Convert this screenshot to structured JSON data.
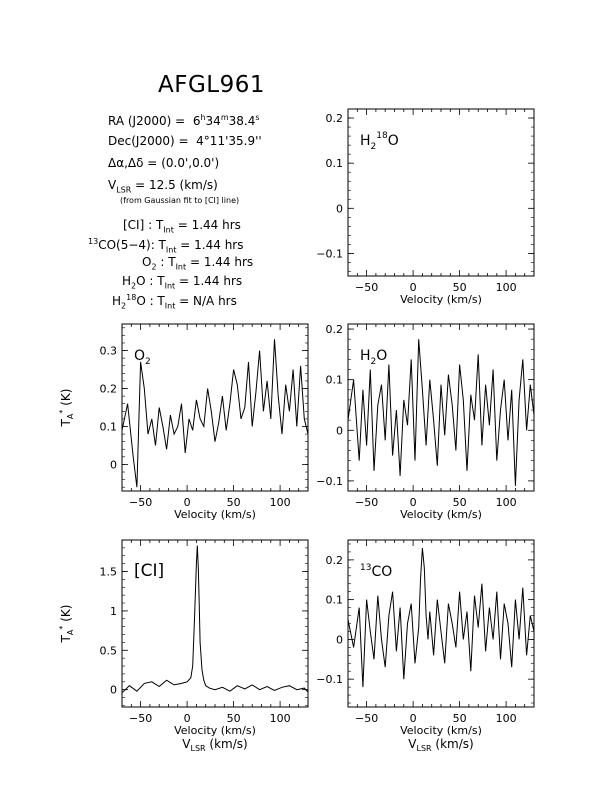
{
  "header": {
    "title": "AFGL961",
    "ra_label": "RA (J2000) =",
    "ra_value": "6h34m38.4s",
    "dec_label": "Dec(J2000) =",
    "dec_value": "4°11'35.9\"",
    "offset_label": "Δα,Δδ =",
    "offset_value": "(0.0',0.0')",
    "vlsr_label": "VLSR =",
    "vlsr_value": "12.5 (km/s)",
    "vlsr_note": "(from Gaussian fit to [CI] line)"
  },
  "integration": [
    {
      "line": "[CI]",
      "tint": "1.44 hrs"
    },
    {
      "line": "13CO(5-4)",
      "tint": "1.44 hrs"
    },
    {
      "line": "O2",
      "tint": "1.44 hrs"
    },
    {
      "line": "H2O",
      "tint": "1.44 hrs"
    },
    {
      "line": "H2 18O",
      "tint": "N/A hrs"
    }
  ],
  "tint_label": "TInt =",
  "chart_data": [
    {
      "type": "line",
      "label": "H2 18O",
      "xlabel": "Velocity (km/s)",
      "ylabel": "",
      "xlim": [
        -70,
        130
      ],
      "ylim": [
        -0.15,
        0.22
      ],
      "xticks": [
        -50,
        0,
        50,
        100
      ],
      "yticks": [
        -0.1,
        0,
        0.1,
        0.2
      ],
      "ytick_labels": [
        "−0.1",
        "0",
        "0.1",
        "0.2"
      ],
      "series": []
    },
    {
      "type": "line",
      "label": "O2",
      "xlabel": "Velocity (km/s)",
      "ylabel": "TA* (K)",
      "xlim": [
        -70,
        130
      ],
      "ylim": [
        -0.07,
        0.37
      ],
      "xticks": [
        -50,
        0,
        50,
        100
      ],
      "yticks": [
        0,
        0.1,
        0.2,
        0.3
      ],
      "ytick_labels": [
        "0",
        "0.1",
        "0.2",
        "0.3"
      ],
      "series": [
        {
          "x": [
            -70,
            -64,
            -58,
            -54,
            -50,
            -46,
            -42,
            -38,
            -34,
            -30,
            -26,
            -22,
            -18,
            -14,
            -10,
            -6,
            -2,
            2,
            6,
            10,
            14,
            18,
            22,
            26,
            30,
            34,
            38,
            42,
            46,
            50,
            54,
            58,
            62,
            66,
            70,
            74,
            78,
            82,
            86,
            90,
            94,
            98,
            102,
            106,
            110,
            114,
            118,
            122,
            126,
            130
          ],
          "y": [
            0.09,
            0.16,
            0.02,
            -0.06,
            0.27,
            0.2,
            0.08,
            0.12,
            0.05,
            0.15,
            0.1,
            0.04,
            0.13,
            0.08,
            0.1,
            0.16,
            0.03,
            0.12,
            0.09,
            0.17,
            0.12,
            0.1,
            0.2,
            0.14,
            0.06,
            0.11,
            0.18,
            0.09,
            0.16,
            0.25,
            0.21,
            0.12,
            0.15,
            0.27,
            0.1,
            0.19,
            0.3,
            0.14,
            0.22,
            0.12,
            0.33,
            0.18,
            0.08,
            0.21,
            0.14,
            0.25,
            0.1,
            0.26,
            0.12,
            0.08
          ]
        }
      ]
    },
    {
      "type": "line",
      "label": "H2O",
      "xlabel": "Velocity (km/s)",
      "ylabel": "",
      "xlim": [
        -70,
        130
      ],
      "ylim": [
        -0.12,
        0.21
      ],
      "xticks": [
        -50,
        0,
        50,
        100
      ],
      "yticks": [
        -0.1,
        0,
        0.1,
        0.2
      ],
      "ytick_labels": [
        "−0.1",
        "0",
        "0.1",
        "0.2"
      ],
      "series": [
        {
          "x": [
            -70,
            -64,
            -58,
            -54,
            -50,
            -46,
            -42,
            -38,
            -34,
            -30,
            -26,
            -22,
            -18,
            -14,
            -10,
            -6,
            -2,
            2,
            6,
            10,
            14,
            18,
            22,
            26,
            30,
            34,
            38,
            42,
            46,
            50,
            54,
            58,
            62,
            66,
            70,
            74,
            78,
            82,
            86,
            90,
            94,
            98,
            102,
            106,
            110,
            114,
            118,
            122,
            126,
            130
          ],
          "y": [
            0.02,
            0.1,
            -0.06,
            0.08,
            -0.03,
            0.12,
            -0.08,
            0.05,
            0.09,
            -0.02,
            0.13,
            -0.05,
            0.04,
            -0.09,
            0.06,
            0.01,
            0.14,
            -0.06,
            0.18,
            0.08,
            -0.03,
            0.1,
            0.02,
            -0.07,
            0.09,
            -0.01,
            0.11,
            0.05,
            -0.04,
            0.13,
            0.06,
            -0.08,
            0.07,
            0.02,
            0.15,
            -0.03,
            0.09,
            0.01,
            0.12,
            -0.06,
            0.04,
            0.1,
            -0.02,
            0.08,
            -0.11,
            0.06,
            0.14,
            0.0,
            0.09,
            0.03
          ]
        }
      ]
    },
    {
      "type": "line",
      "label": "[CI]",
      "xlabel": "Velocity (km/s)",
      "ylabel": "TA* (K)",
      "xlim": [
        -70,
        130
      ],
      "ylim": [
        -0.22,
        1.9
      ],
      "xticks": [
        -50,
        0,
        50,
        100
      ],
      "yticks": [
        0,
        0.5,
        1,
        1.5
      ],
      "ytick_labels": [
        "0",
        "0.5",
        "1",
        "1.5"
      ],
      "series": [
        {
          "x": [
            -70,
            -62,
            -54,
            -46,
            -38,
            -30,
            -22,
            -14,
            -6,
            0,
            4,
            6,
            8,
            10,
            11,
            12,
            13,
            14,
            16,
            18,
            20,
            24,
            30,
            38,
            46,
            54,
            62,
            70,
            78,
            86,
            94,
            102,
            110,
            118,
            126,
            130
          ],
          "y": [
            -0.04,
            0.05,
            -0.02,
            0.08,
            0.1,
            0.04,
            0.12,
            0.06,
            0.08,
            0.1,
            0.15,
            0.3,
            0.9,
            1.6,
            1.83,
            1.55,
            1.1,
            0.6,
            0.25,
            0.12,
            0.05,
            0.02,
            0.0,
            0.03,
            -0.02,
            0.05,
            0.01,
            0.06,
            0.0,
            0.04,
            -0.01,
            0.03,
            0.05,
            0.0,
            0.02,
            -0.03
          ]
        }
      ]
    },
    {
      "type": "line",
      "label": "13CO",
      "xlabel": "Velocity (km/s)",
      "ylabel": "",
      "xlim": [
        -70,
        130
      ],
      "ylim": [
        -0.17,
        0.25
      ],
      "xticks": [
        -50,
        0,
        50,
        100
      ],
      "yticks": [
        -0.1,
        0,
        0.1,
        0.2
      ],
      "ytick_labels": [
        "−0.1",
        "0",
        "0.1",
        "0.2"
      ],
      "series": [
        {
          "x": [
            -70,
            -64,
            -58,
            -54,
            -50,
            -46,
            -42,
            -38,
            -34,
            -30,
            -26,
            -22,
            -18,
            -14,
            -10,
            -6,
            -2,
            2,
            6,
            8,
            10,
            12,
            14,
            16,
            18,
            22,
            26,
            30,
            34,
            38,
            42,
            46,
            50,
            54,
            58,
            62,
            66,
            70,
            74,
            78,
            82,
            86,
            90,
            94,
            98,
            102,
            106,
            110,
            114,
            118,
            122,
            126,
            130
          ],
          "y": [
            0.05,
            -0.02,
            0.08,
            -0.12,
            0.1,
            0.02,
            -0.05,
            0.11,
            0.0,
            -0.07,
            0.06,
            0.12,
            -0.03,
            0.08,
            -0.1,
            0.04,
            0.09,
            -0.06,
            0.03,
            0.15,
            0.23,
            0.18,
            0.06,
            0.0,
            0.07,
            -0.04,
            0.1,
            0.02,
            -0.06,
            0.09,
            0.04,
            -0.02,
            0.12,
            0.0,
            0.07,
            -0.08,
            0.11,
            0.03,
            0.14,
            -0.03,
            0.08,
            0.0,
            0.12,
            -0.05,
            0.09,
            0.04,
            -0.07,
            0.1,
            0.0,
            0.13,
            -0.04,
            0.06,
            0.02
          ]
        }
      ]
    }
  ]
}
